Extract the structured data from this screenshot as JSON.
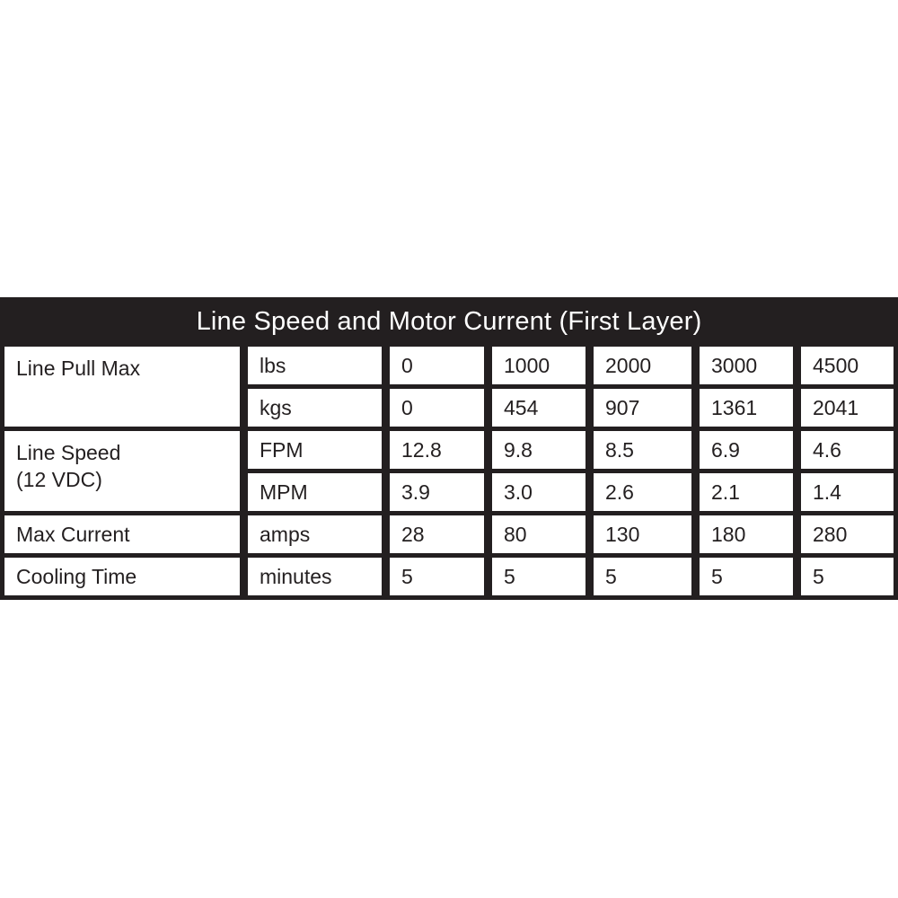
{
  "table": {
    "title": "Line Speed and Motor Current (First Layer)",
    "colors": {
      "frame_black": "#231f20",
      "cell_white": "#ffffff",
      "title_text": "#ffffff",
      "cell_text": "#231f20"
    },
    "row_groups": {
      "line_pull_max": {
        "label": "Line Pull Max",
        "rows": [
          {
            "unit": "lbs",
            "values": [
              "0",
              "1000",
              "2000",
              "3000",
              "4500"
            ]
          },
          {
            "unit": "kgs",
            "values": [
              "0",
              "454",
              "907",
              "1361",
              "2041"
            ]
          }
        ]
      },
      "line_speed": {
        "label_line1": "Line Speed",
        "label_line2": "(12 VDC)",
        "rows": [
          {
            "unit": "FPM",
            "values": [
              "12.8",
              "9.8",
              "8.5",
              "6.9",
              "4.6"
            ]
          },
          {
            "unit": "MPM",
            "values": [
              "3.9",
              "3.0",
              "2.6",
              "2.1",
              "1.4"
            ]
          }
        ]
      },
      "max_current": {
        "label": "Max Current",
        "rows": [
          {
            "unit": "amps",
            "values": [
              "28",
              "80",
              "130",
              "180",
              "280"
            ]
          }
        ]
      },
      "cooling_time": {
        "label": "Cooling Time",
        "rows": [
          {
            "unit": "minutes",
            "values": [
              "5",
              "5",
              "5",
              "5",
              "5"
            ]
          }
        ]
      }
    }
  }
}
